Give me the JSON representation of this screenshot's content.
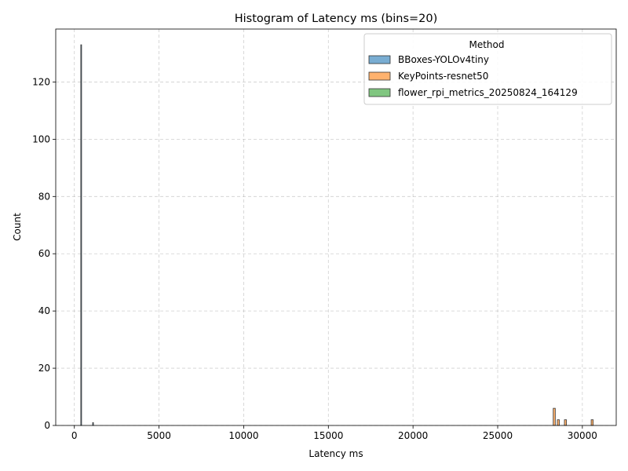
{
  "chart_data": {
    "type": "bar",
    "title": "Histogram of Latency ms (bins=20)",
    "xlabel": "Latency ms",
    "ylabel": "Count",
    "xlim": [
      -1100,
      32000
    ],
    "ylim": [
      0,
      138.5
    ],
    "xticks": [
      0,
      5000,
      10000,
      15000,
      20000,
      25000,
      30000
    ],
    "yticks": [
      0,
      20,
      40,
      60,
      80,
      100,
      120
    ],
    "grid": true,
    "legend": {
      "title": "Method",
      "placement": "top-right"
    },
    "series": [
      {
        "name": "BBoxes-YOLOv4tiny",
        "color": "#1f77b4",
        "bins": [
          {
            "x0": 380,
            "x1": 420,
            "count": 133
          },
          {
            "x0": 1080,
            "x1": 1120,
            "count": 1
          }
        ]
      },
      {
        "name": "KeyPoints-resnet50",
        "color": "#ff7f0e",
        "bins": [
          {
            "x0": 28280,
            "x1": 28400,
            "count": 6
          },
          {
            "x0": 28520,
            "x1": 28640,
            "count": 2
          },
          {
            "x0": 28940,
            "x1": 29060,
            "count": 2
          },
          {
            "x0": 30520,
            "x1": 30640,
            "count": 2
          }
        ]
      },
      {
        "name": "flower_rpi_metrics_20250824_164129",
        "color": "#2ca02c",
        "bins": []
      }
    ]
  }
}
